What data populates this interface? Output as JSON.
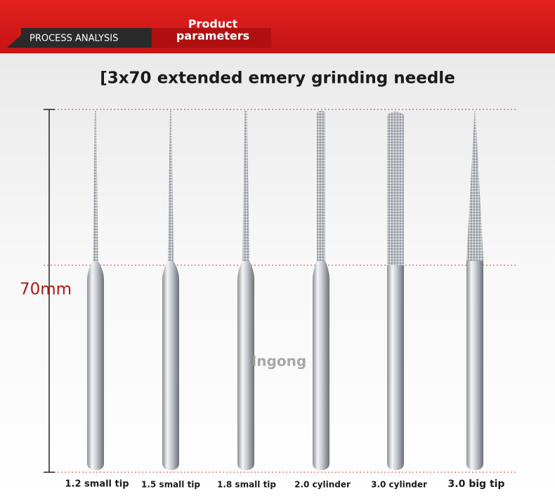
{
  "header": {
    "tab_left": "PROCESS ANALYSIS",
    "tab_right_line1": "Product",
    "tab_right_line2": "parameters"
  },
  "title": "[3x70 extended emery grinding needle",
  "dimension_label": "70mm",
  "watermark": "Ingong",
  "needles": [
    {
      "label": "1.2 small tip"
    },
    {
      "label": "1.5 small tip"
    },
    {
      "label": "1.8 small tip"
    },
    {
      "label": "2.0 cylinder"
    },
    {
      "label": "3.0 cylinder"
    },
    {
      "label": "3.0 big tip"
    }
  ]
}
